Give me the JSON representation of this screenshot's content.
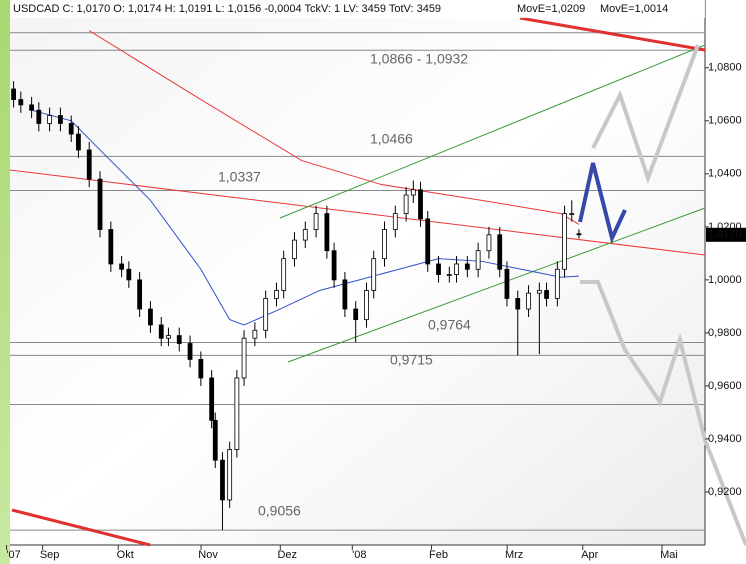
{
  "chart_data": {
    "type": "candlestick",
    "header": "USDCAD C: 1,0170 O: 1,0174 H: 1,0191 L: 1,0156 -0,0004 TckV: 1 LV: 3459 TotV: 3459",
    "ma_labels": [
      "MovE=1,0209",
      "MovE=1,0014"
    ],
    "xlim": [
      0,
      193
    ],
    "ylim": [
      0.9,
      1.095
    ],
    "xticks": [
      {
        "value": 1,
        "label": "'07"
      },
      {
        "value": 11,
        "label": "Sep"
      },
      {
        "value": 32,
        "label": "Okt"
      },
      {
        "value": 55,
        "label": "Nov"
      },
      {
        "value": 77,
        "label": "Dez"
      },
      {
        "value": 97,
        "label": "'08"
      },
      {
        "value": 119,
        "label": "Feb"
      },
      {
        "value": 140,
        "label": "Mrz"
      },
      {
        "value": 161,
        "label": "Apr"
      },
      {
        "value": 183,
        "label": "Mai"
      }
    ],
    "yticks": [
      {
        "value": 0.92,
        "label": "0,9200"
      },
      {
        "value": 0.94,
        "label": "0,9400"
      },
      {
        "value": 0.96,
        "label": "0,9600"
      },
      {
        "value": 0.98,
        "label": "0,9800"
      },
      {
        "value": 1.0,
        "label": "1,0000"
      },
      {
        "value": 1.02,
        "label": "1,0200"
      },
      {
        "value": 1.04,
        "label": "1,0400"
      },
      {
        "value": 1.06,
        "label": "1,0600"
      },
      {
        "value": 1.08,
        "label": "1,0800"
      }
    ],
    "price_marker": {
      "value": 1.017,
      "label": "1,0170"
    },
    "x": [
      1,
      3,
      6,
      8,
      11,
      14,
      17,
      19,
      22,
      25,
      28,
      31,
      33,
      36,
      39,
      42,
      44,
      47,
      50,
      53,
      56,
      57,
      59,
      61,
      63,
      65,
      68,
      71,
      74,
      76,
      79,
      82,
      85,
      88,
      90,
      93,
      96,
      99,
      101,
      104,
      107,
      110,
      112,
      114,
      116,
      119,
      122,
      124,
      127,
      130,
      133,
      136,
      138,
      141,
      144,
      147,
      149,
      152,
      154,
      156,
      158
    ],
    "open": [
      1.072,
      1.068,
      1.066,
      1.064,
      1.059,
      1.062,
      1.059,
      1.055,
      1.049,
      1.038,
      1.019,
      1.006,
      1.004,
      1.0,
      0.989,
      0.983,
      0.978,
      0.979,
      0.976,
      0.97,
      0.963,
      0.947,
      0.932,
      0.917,
      0.936,
      0.963,
      0.978,
      0.981,
      0.993,
      0.996,
      1.008,
      1.015,
      1.019,
      1.025,
      1.011,
      1.0,
      0.989,
      0.985,
      0.996,
      1.008,
      1.019,
      1.025,
      1.032,
      1.034,
      1.023,
      1.006,
      1.002,
      1.002,
      1.006,
      1.004,
      1.011,
      1.017,
      1.004,
      0.993,
      0.989,
      0.995,
      0.996,
      0.993,
      1.004,
      1.025,
      1.0174
    ],
    "high": [
      1.075,
      1.071,
      1.069,
      1.067,
      1.065,
      1.065,
      1.062,
      1.058,
      1.052,
      1.041,
      1.022,
      1.009,
      1.007,
      1.003,
      0.992,
      0.986,
      0.982,
      0.982,
      0.979,
      0.973,
      0.966,
      0.95,
      0.935,
      0.939,
      0.966,
      0.981,
      0.984,
      0.996,
      0.999,
      1.011,
      1.018,
      1.022,
      1.028,
      1.028,
      1.014,
      1.003,
      0.992,
      0.999,
      1.011,
      1.022,
      1.028,
      1.035,
      1.0375,
      1.037,
      1.026,
      1.009,
      1.005,
      1.009,
      1.009,
      1.014,
      1.02,
      1.02,
      1.007,
      0.996,
      0.998,
      0.999,
      0.999,
      1.007,
      1.028,
      1.03,
      1.0191
    ],
    "low": [
      1.065,
      1.063,
      1.061,
      1.056,
      1.056,
      1.056,
      1.052,
      1.046,
      1.035,
      1.016,
      1.003,
      1.001,
      0.997,
      0.986,
      0.98,
      0.975,
      0.975,
      0.973,
      0.967,
      0.96,
      0.944,
      0.929,
      0.9056,
      0.914,
      0.933,
      0.96,
      0.975,
      0.978,
      0.99,
      0.993,
      1.005,
      1.012,
      1.016,
      1.008,
      0.997,
      0.986,
      0.9764,
      0.982,
      0.993,
      1.005,
      1.016,
      1.022,
      1.029,
      1.02,
      1.003,
      0.999,
      0.999,
      0.999,
      1.001,
      1.001,
      1.008,
      1.001,
      0.99,
      0.9715,
      0.986,
      0.972,
      0.99,
      0.99,
      1.001,
      1.022,
      1.0156
    ],
    "close": [
      1.068,
      1.066,
      1.064,
      1.059,
      1.062,
      1.059,
      1.055,
      1.049,
      1.038,
      1.019,
      1.006,
      1.004,
      1.0,
      0.989,
      0.983,
      0.978,
      0.979,
      0.976,
      0.97,
      0.963,
      0.947,
      0.932,
      0.917,
      0.936,
      0.963,
      0.978,
      0.981,
      0.993,
      0.996,
      1.008,
      1.015,
      1.019,
      1.025,
      1.011,
      1.0,
      0.989,
      0.985,
      0.996,
      1.008,
      1.019,
      1.025,
      1.032,
      1.034,
      1.023,
      1.006,
      1.002,
      1.002,
      1.006,
      1.004,
      1.011,
      1.017,
      1.004,
      0.993,
      0.989,
      0.995,
      0.996,
      0.993,
      1.004,
      1.025,
      1.025,
      1.017
    ],
    "moving_averages": [
      {
        "color": "#e8383a",
        "x": [
          22,
          53,
          81,
          103,
          131,
          153,
          158
        ],
        "values": [
          1.094,
          1.068,
          1.045,
          1.036,
          1.03,
          1.025,
          1.0209
        ]
      },
      {
        "color": "#3050c8",
        "x": [
          6,
          17,
          25,
          39,
          53,
          61,
          65,
          75,
          86,
          97,
          108,
          119,
          131,
          142,
          153,
          158
        ],
        "values": [
          1.064,
          1.06,
          1.049,
          1.03,
          1.004,
          0.985,
          0.983,
          0.989,
          0.996,
          1.0,
          1.004,
          1.008,
          1.007,
          1.004,
          1.001,
          1.0014
        ]
      }
    ],
    "levels": [
      1.0932,
      1.0866,
      1.0466,
      1.0337,
      0.9764,
      0.9715,
      0.953,
      0.9056
    ],
    "annotations": [
      "1,0866 - 1,0932",
      "1,0466",
      "1,0337",
      "0,9764",
      "0,9715",
      "0,9056"
    ]
  }
}
